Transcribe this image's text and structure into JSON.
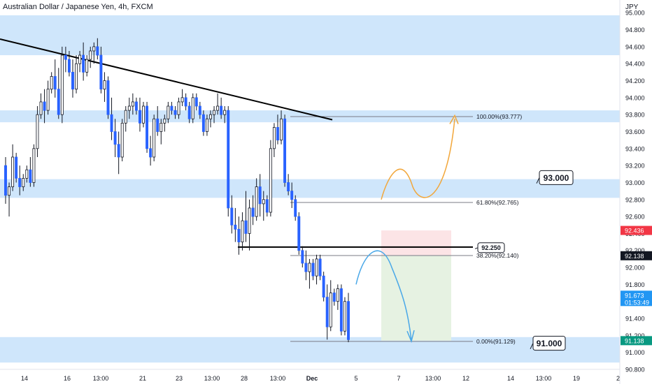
{
  "header": {
    "title": "Australian Dollar / Japanese Yen, 4h, FXCM"
  },
  "axis": {
    "currency": "JPY"
  },
  "colors": {
    "zone": "#cfe6fb",
    "candle_up": "#ffffff",
    "candle_down": "#2962ff",
    "wick": "#131722",
    "trendline": "#000000",
    "orange_arrow": "#f2a73b",
    "blue_arrow": "#4aa8e8",
    "risk": "#fce4e6",
    "reward": "#e6f2e2"
  },
  "chart_data": {
    "type": "candlestick",
    "ylim": [
      90.8,
      95.15
    ],
    "y_ticks": [
      "95.000",
      "94.800",
      "94.600",
      "94.400",
      "94.200",
      "94.000",
      "93.800",
      "93.600",
      "93.400",
      "93.200",
      "93.000",
      "92.800",
      "92.600",
      "92.400",
      "92.200",
      "92.000",
      "91.800",
      "91.600",
      "91.400",
      "91.200",
      "91.000",
      "90.800"
    ],
    "x_ticks": [
      "14",
      "16",
      "13:00",
      "21",
      "23",
      "13:00",
      "28",
      "13:00",
      "Dec",
      "5",
      "7",
      "13:00",
      "12",
      "14",
      "13:00",
      "19",
      "2"
    ],
    "zones": [
      [
        94.5,
        94.97
      ],
      [
        93.71,
        93.85
      ],
      [
        92.82,
        93.04
      ],
      [
        90.88,
        91.18
      ]
    ],
    "trendline": {
      "from": [
        0,
        94.69
      ],
      "to": [
        475,
        93.74
      ]
    },
    "support_line": 92.24,
    "fibonacci": [
      {
        "label": "100.00%(93.777)",
        "value": 93.777
      },
      {
        "label": "61.80%(92.765)",
        "value": 92.765
      },
      {
        "label": "38.20%(92.140)",
        "value": 92.14
      },
      {
        "label": "0.00%(91.129)",
        "value": 91.129
      }
    ],
    "position": {
      "entry": 92.138,
      "stop": 92.436,
      "target": 91.138
    },
    "callouts": [
      {
        "label": "93.000",
        "value": 93.0
      },
      {
        "label": "92.250",
        "value": 92.25
      },
      {
        "label": "91.000",
        "value": 91.0
      }
    ],
    "price_labels": [
      {
        "text": "92.436",
        "value": 92.436,
        "color": "#f23645"
      },
      {
        "text": "92.138",
        "value": 92.138,
        "color": "#131722"
      },
      {
        "text": "91.673",
        "sub": "01:53:49",
        "value": 91.673,
        "color": "#2196f3"
      },
      {
        "text": "91.138",
        "value": 91.138,
        "color": "#089981"
      }
    ],
    "candles": [
      [
        93.2,
        93.3,
        92.75,
        92.85
      ],
      [
        92.85,
        93.0,
        92.6,
        92.95
      ],
      [
        92.95,
        93.45,
        92.9,
        93.3
      ],
      [
        93.3,
        93.35,
        93.0,
        93.05
      ],
      [
        93.05,
        93.2,
        92.85,
        92.95
      ],
      [
        92.95,
        93.1,
        92.9,
        93.05
      ],
      [
        93.05,
        93.2,
        93.0,
        93.15
      ],
      [
        93.15,
        93.3,
        92.95,
        93.0
      ],
      [
        93.0,
        93.45,
        92.95,
        93.4
      ],
      [
        93.4,
        93.9,
        93.3,
        93.8
      ],
      [
        93.8,
        94.05,
        93.75,
        93.95
      ],
      [
        93.95,
        94.1,
        93.7,
        93.85
      ],
      [
        93.85,
        94.2,
        93.8,
        94.1
      ],
      [
        94.1,
        94.3,
        94.05,
        94.25
      ],
      [
        94.25,
        94.45,
        94.0,
        94.1
      ],
      [
        94.1,
        94.35,
        93.75,
        93.8
      ],
      [
        93.8,
        94.6,
        93.7,
        94.5
      ],
      [
        94.5,
        94.6,
        94.3,
        94.45
      ],
      [
        94.45,
        94.55,
        94.25,
        94.3
      ],
      [
        94.3,
        94.45,
        94.0,
        94.1
      ],
      [
        94.1,
        94.5,
        94.05,
        94.4
      ],
      [
        94.4,
        94.55,
        94.3,
        94.5
      ],
      [
        94.5,
        94.65,
        94.2,
        94.3
      ],
      [
        94.3,
        94.5,
        94.25,
        94.45
      ],
      [
        94.45,
        94.6,
        94.35,
        94.55
      ],
      [
        94.55,
        94.65,
        94.4,
        94.6
      ],
      [
        94.6,
        94.7,
        94.45,
        94.5
      ],
      [
        94.5,
        94.6,
        94.05,
        94.1
      ],
      [
        94.1,
        94.3,
        93.95,
        94.2
      ],
      [
        94.2,
        94.25,
        93.75,
        93.8
      ],
      [
        93.8,
        94.0,
        93.5,
        93.6
      ],
      [
        93.6,
        93.75,
        93.3,
        93.45
      ],
      [
        93.45,
        93.6,
        93.1,
        93.3
      ],
      [
        93.3,
        93.75,
        93.25,
        93.7
      ],
      [
        93.7,
        93.9,
        93.6,
        93.85
      ],
      [
        93.85,
        94.0,
        93.75,
        93.9
      ],
      [
        93.9,
        94.05,
        93.8,
        93.95
      ],
      [
        93.95,
        94.0,
        93.8,
        93.85
      ],
      [
        93.85,
        94.0,
        93.6,
        93.7
      ],
      [
        93.7,
        93.95,
        93.65,
        93.9
      ],
      [
        93.9,
        93.95,
        93.35,
        93.4
      ],
      [
        93.4,
        93.55,
        93.2,
        93.3
      ],
      [
        93.3,
        93.8,
        93.25,
        93.75
      ],
      [
        93.75,
        93.9,
        93.55,
        93.6
      ],
      [
        93.6,
        93.75,
        93.45,
        93.7
      ],
      [
        93.7,
        93.8,
        93.6,
        93.75
      ],
      [
        93.75,
        93.95,
        93.7,
        93.9
      ],
      [
        93.9,
        93.95,
        93.8,
        93.85
      ],
      [
        93.85,
        93.9,
        93.75,
        93.8
      ],
      [
        93.8,
        94.0,
        93.75,
        93.95
      ],
      [
        93.95,
        94.1,
        93.9,
        94.0
      ],
      [
        94.0,
        94.05,
        93.85,
        93.9
      ],
      [
        93.9,
        93.95,
        93.7,
        93.75
      ],
      [
        93.75,
        94.05,
        93.7,
        94.0
      ],
      [
        94.0,
        94.05,
        93.85,
        93.9
      ],
      [
        93.9,
        93.95,
        93.75,
        93.8
      ],
      [
        93.8,
        93.85,
        93.55,
        93.6
      ],
      [
        93.6,
        93.8,
        93.55,
        93.75
      ],
      [
        93.75,
        93.85,
        93.65,
        93.8
      ],
      [
        93.8,
        93.9,
        93.7,
        93.85
      ],
      [
        93.85,
        94.05,
        93.8,
        93.9
      ],
      [
        93.9,
        94.0,
        93.75,
        93.8
      ],
      [
        93.8,
        93.9,
        93.7,
        93.85
      ],
      [
        93.85,
        93.9,
        92.6,
        92.7
      ],
      [
        92.7,
        92.85,
        92.4,
        92.5
      ],
      [
        92.5,
        92.7,
        92.3,
        92.45
      ],
      [
        92.45,
        92.6,
        92.15,
        92.3
      ],
      [
        92.3,
        92.65,
        92.2,
        92.55
      ],
      [
        92.55,
        92.9,
        92.3,
        92.4
      ],
      [
        92.4,
        92.8,
        92.2,
        92.7
      ],
      [
        92.7,
        92.85,
        92.5,
        92.6
      ],
      [
        92.6,
        93.05,
        92.55,
        92.95
      ],
      [
        92.95,
        93.1,
        92.6,
        92.75
      ],
      [
        92.75,
        92.9,
        92.55,
        92.8
      ],
      [
        92.8,
        92.85,
        92.6,
        92.65
      ],
      [
        92.65,
        93.5,
        92.6,
        93.4
      ],
      [
        93.4,
        93.7,
        93.3,
        93.65
      ],
      [
        93.65,
        93.8,
        93.45,
        93.5
      ],
      [
        93.5,
        93.85,
        93.45,
        93.75
      ],
      [
        93.75,
        93.8,
        92.95,
        93.0
      ],
      [
        93.0,
        93.1,
        92.85,
        92.9
      ],
      [
        92.9,
        93.0,
        92.7,
        92.8
      ],
      [
        92.8,
        92.85,
        92.55,
        92.6
      ],
      [
        92.6,
        92.65,
        92.15,
        92.2
      ],
      [
        92.2,
        92.25,
        92.0,
        92.05
      ],
      [
        92.05,
        92.2,
        91.85,
        91.95
      ],
      [
        91.95,
        92.1,
        91.75,
        92.05
      ],
      [
        92.05,
        92.1,
        91.85,
        91.9
      ],
      [
        91.9,
        92.15,
        91.8,
        92.1
      ],
      [
        92.1,
        92.15,
        91.85,
        91.9
      ],
      [
        91.9,
        91.95,
        91.6,
        91.65
      ],
      [
        91.65,
        91.8,
        91.15,
        91.3
      ],
      [
        91.3,
        91.85,
        91.25,
        91.7
      ],
      [
        91.7,
        91.75,
        91.55,
        91.6
      ],
      [
        91.6,
        91.8,
        91.5,
        91.75
      ],
      [
        91.75,
        91.8,
        91.2,
        91.25
      ],
      [
        91.25,
        91.65,
        91.2,
        91.6
      ],
      [
        91.6,
        91.7,
        91.12,
        91.15
      ]
    ]
  }
}
